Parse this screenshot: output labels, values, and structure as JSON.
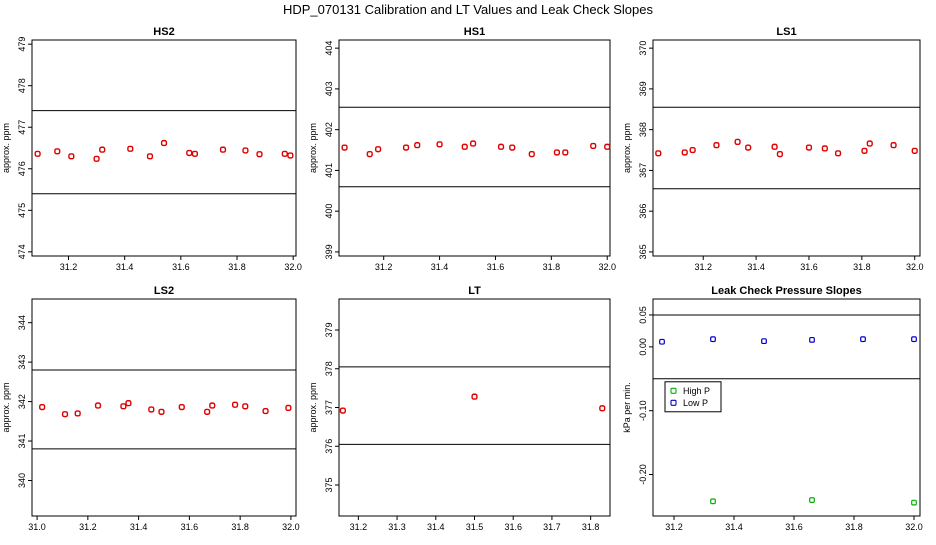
{
  "figure": {
    "title": "HDP_070131  Calibration and LT Values and Leak Check Slopes"
  },
  "colors": {
    "points": "#e00000",
    "high_p": "#00b000",
    "low_p": "#0000d0",
    "lines": "#000000"
  },
  "chart_data": [
    {
      "id": "hs2",
      "type": "scatter",
      "title": "HS2",
      "ylabel": "approx. ppm",
      "xlim": [
        31.07,
        32.01
      ],
      "ylim": [
        473.9,
        479.1
      ],
      "xticks": [
        31.2,
        31.4,
        31.6,
        31.8,
        32.0
      ],
      "xtick_labels": [
        "31.2",
        "31.4",
        "31.6",
        "31.8",
        "32.0"
      ],
      "yticks": [
        474,
        475,
        476,
        477,
        478,
        479
      ],
      "ytick_labels": [
        "474",
        "475",
        "476",
        "477",
        "478",
        "479"
      ],
      "hlines": [
        475.4,
        477.4
      ],
      "x": [
        31.09,
        31.16,
        31.21,
        31.3,
        31.32,
        31.42,
        31.49,
        31.54,
        31.63,
        31.65,
        31.75,
        31.83,
        31.88,
        31.97,
        31.99
      ],
      "y": [
        476.36,
        476.42,
        476.3,
        476.24,
        476.46,
        476.48,
        476.3,
        476.62,
        476.38,
        476.36,
        476.46,
        476.44,
        476.35,
        476.36,
        476.32
      ]
    },
    {
      "id": "hs1",
      "type": "scatter",
      "title": "HS1",
      "ylabel": "approx. ppm",
      "xlim": [
        31.04,
        32.01
      ],
      "ylim": [
        398.9,
        404.2
      ],
      "xticks": [
        31.2,
        31.4,
        31.6,
        31.8,
        32.0
      ],
      "xtick_labels": [
        "31.2",
        "31.4",
        "31.6",
        "31.8",
        "32.0"
      ],
      "yticks": [
        399,
        400,
        401,
        402,
        403,
        404
      ],
      "ytick_labels": [
        "399",
        "400",
        "401",
        "402",
        "403",
        "404"
      ],
      "hlines": [
        400.6,
        402.55
      ],
      "x": [
        31.06,
        31.15,
        31.18,
        31.28,
        31.32,
        31.4,
        31.49,
        31.52,
        31.62,
        31.66,
        31.73,
        31.82,
        31.85,
        31.95,
        32.0
      ],
      "y": [
        401.56,
        401.4,
        401.52,
        401.56,
        401.62,
        401.64,
        401.58,
        401.66,
        401.58,
        401.56,
        401.4,
        401.44,
        401.44,
        401.6,
        401.58
      ]
    },
    {
      "id": "ls1",
      "type": "scatter",
      "title": "LS1",
      "ylabel": "approx. ppm",
      "xlim": [
        31.01,
        32.02
      ],
      "ylim": [
        364.9,
        370.2
      ],
      "xticks": [
        31.2,
        31.4,
        31.6,
        31.8,
        32.0
      ],
      "xtick_labels": [
        "31.2",
        "31.4",
        "31.6",
        "31.8",
        "32.0"
      ],
      "yticks": [
        365,
        366,
        367,
        368,
        369,
        370
      ],
      "ytick_labels": [
        "365",
        "366",
        "367",
        "368",
        "369",
        "370"
      ],
      "hlines": [
        366.55,
        368.55
      ],
      "x": [
        31.03,
        31.13,
        31.16,
        31.25,
        31.33,
        31.37,
        31.47,
        31.49,
        31.6,
        31.66,
        31.71,
        31.81,
        31.83,
        31.92,
        32.0
      ],
      "y": [
        367.42,
        367.44,
        367.5,
        367.62,
        367.7,
        367.56,
        367.58,
        367.4,
        367.56,
        367.54,
        367.42,
        367.48,
        367.66,
        367.62,
        367.48
      ]
    },
    {
      "id": "ls2",
      "type": "scatter",
      "title": "LS2",
      "ylabel": "approx. ppm",
      "xlim": [
        30.98,
        32.02
      ],
      "ylim": [
        339.1,
        344.6
      ],
      "xticks": [
        31.0,
        31.2,
        31.4,
        31.6,
        31.8,
        32.0
      ],
      "xtick_labels": [
        "31.0",
        "31.2",
        "31.4",
        "31.6",
        "31.8",
        "32.0"
      ],
      "yticks": [
        340,
        341,
        342,
        343,
        344
      ],
      "ytick_labels": [
        "340",
        "341",
        "342",
        "343",
        "344"
      ],
      "hlines": [
        340.8,
        342.8
      ],
      "x": [
        31.02,
        31.11,
        31.16,
        31.24,
        31.34,
        31.36,
        31.45,
        31.49,
        31.57,
        31.67,
        31.69,
        31.78,
        31.82,
        31.9,
        31.99
      ],
      "y": [
        341.86,
        341.68,
        341.7,
        341.9,
        341.88,
        341.96,
        341.8,
        341.74,
        341.86,
        341.74,
        341.9,
        341.92,
        341.88,
        341.76,
        341.84
      ]
    },
    {
      "id": "lt",
      "type": "scatter",
      "title": "LT",
      "ylabel": "approx. ppm",
      "xlim": [
        31.15,
        31.85
      ],
      "ylim": [
        374.2,
        379.8
      ],
      "xticks": [
        31.2,
        31.3,
        31.4,
        31.5,
        31.6,
        31.7,
        31.8
      ],
      "xtick_labels": [
        "31.2",
        "31.3",
        "31.4",
        "31.5",
        "31.6",
        "31.7",
        "31.8"
      ],
      "yticks": [
        375,
        376,
        377,
        378,
        379
      ],
      "ytick_labels": [
        "375",
        "376",
        "377",
        "378",
        "379"
      ],
      "hlines": [
        376.05,
        378.05
      ],
      "x": [
        31.16,
        31.5,
        31.83
      ],
      "y": [
        376.92,
        377.28,
        376.98
      ]
    },
    {
      "id": "leak",
      "type": "scatter",
      "title": "Leak Check Pressure Slopes",
      "ylabel": "kPa per min.",
      "xlim": [
        31.13,
        32.02
      ],
      "ylim": [
        -0.265,
        0.075
      ],
      "xticks": [
        31.2,
        31.4,
        31.6,
        31.8,
        32.0
      ],
      "xtick_labels": [
        "31.2",
        "31.4",
        "31.6",
        "31.8",
        "32.0"
      ],
      "yticks": [
        0.05,
        0.0,
        -0.1,
        -0.2
      ],
      "ytick_labels": [
        "0.05",
        "0.00",
        "-0.10",
        "-0.20"
      ],
      "hlines": [
        0.05,
        -0.05
      ],
      "legend": {
        "position": "left",
        "entries": [
          "High P",
          "Low P"
        ]
      },
      "series": [
        {
          "name": "High P",
          "color": "#00b000",
          "x": [
            31.33,
            31.66,
            32.0
          ],
          "y": [
            -0.242,
            -0.24,
            -0.244
          ]
        },
        {
          "name": "Low P",
          "color": "#0000d0",
          "x": [
            31.16,
            31.33,
            31.5,
            31.66,
            31.83,
            32.0
          ],
          "y": [
            0.008,
            0.012,
            0.009,
            0.011,
            0.012,
            0.012
          ]
        }
      ]
    }
  ]
}
